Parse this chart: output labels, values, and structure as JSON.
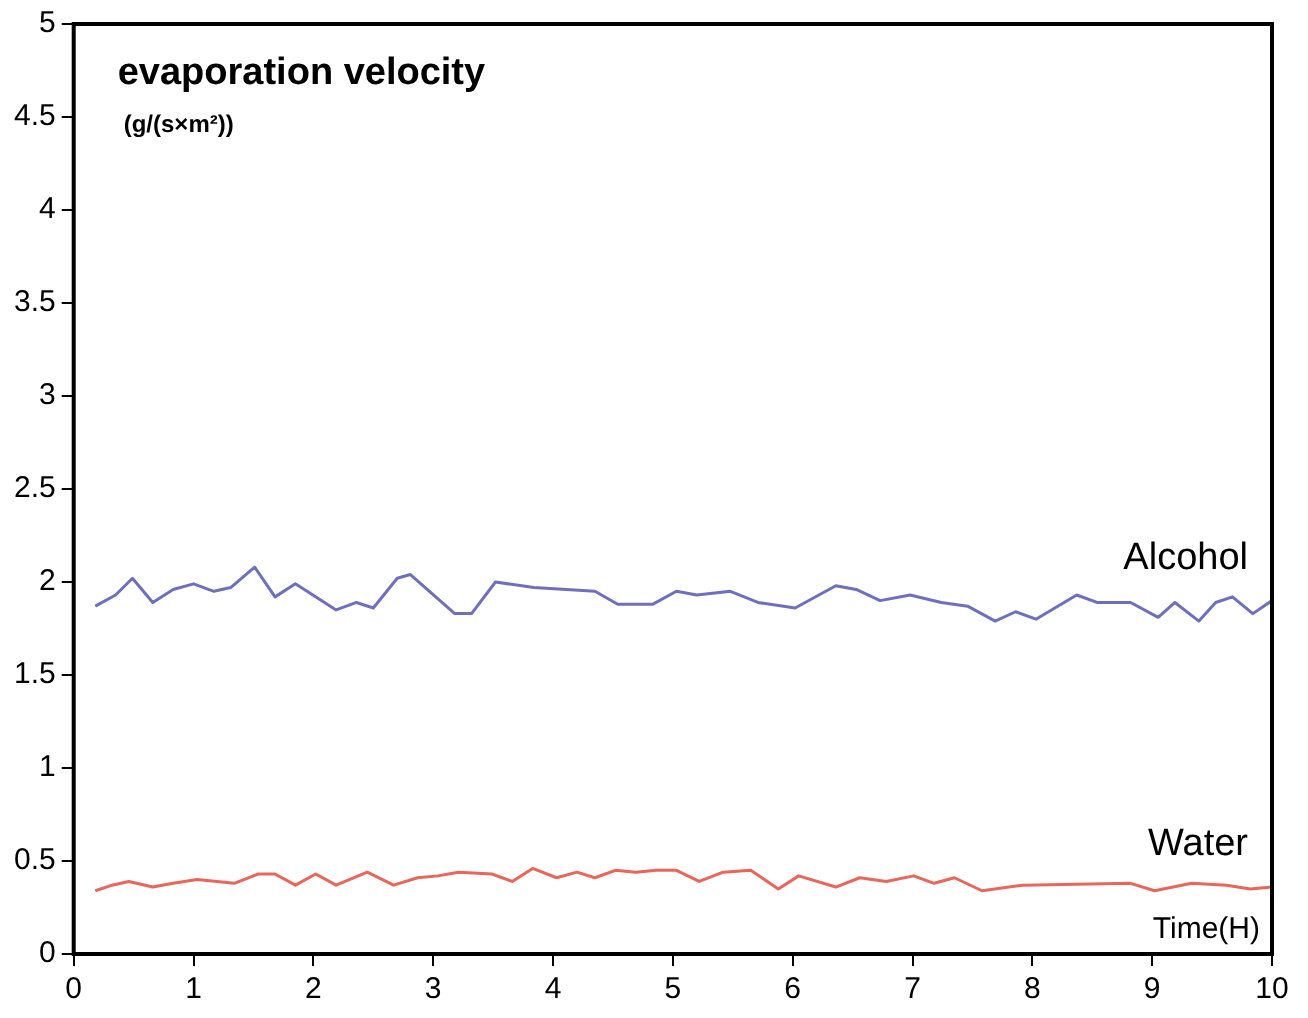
{
  "chart_data": {
    "type": "line",
    "ylabel": "evaporation velocity",
    "xlabel": "Time(H)",
    "annotations": [
      "(g/(s×m²))"
    ],
    "xlim": [
      0,
      10
    ],
    "xticks": [
      0,
      1,
      2,
      3,
      4,
      5,
      6,
      7,
      8,
      9,
      10
    ],
    "ylim": [
      0,
      5
    ],
    "yticks": [
      0,
      0.5,
      1,
      1.5,
      2,
      2.5,
      3,
      3.5,
      4,
      4.5,
      5
    ],
    "grid": false,
    "legend": false,
    "marker": "none",
    "line_style": "solid",
    "series": [
      {
        "name": "Alcohol",
        "color": "#6f6fc0",
        "x": [
          0.18,
          0.35,
          0.49,
          0.66,
          0.83,
          1.0,
          1.17,
          1.31,
          1.51,
          1.68,
          1.85,
          2.19,
          2.36,
          2.5,
          2.7,
          2.81,
          3.18,
          3.32,
          3.52,
          3.84,
          4.35,
          4.54,
          4.83,
          5.03,
          5.2,
          5.48,
          5.71,
          6.02,
          6.36,
          6.53,
          6.73,
          6.98,
          7.24,
          7.46,
          7.69,
          7.86,
          8.03,
          8.37,
          8.54,
          8.82,
          9.05,
          9.19,
          9.39,
          9.53,
          9.67,
          9.84,
          10.0
        ],
        "values": [
          1.87,
          1.93,
          2.02,
          1.89,
          1.96,
          1.99,
          1.95,
          1.97,
          2.08,
          1.92,
          1.99,
          1.85,
          1.89,
          1.86,
          2.02,
          2.04,
          1.83,
          1.83,
          2.0,
          1.97,
          1.95,
          1.88,
          1.88,
          1.95,
          1.93,
          1.95,
          1.89,
          1.86,
          1.98,
          1.96,
          1.9,
          1.93,
          1.89,
          1.87,
          1.79,
          1.84,
          1.8,
          1.93,
          1.89,
          1.89,
          1.81,
          1.89,
          1.79,
          1.89,
          1.92,
          1.83,
          1.9
        ]
      },
      {
        "name": "Water",
        "color": "#e8665a",
        "x": [
          0.18,
          0.32,
          0.46,
          0.66,
          0.83,
          1.03,
          1.34,
          1.54,
          1.68,
          1.85,
          2.02,
          2.19,
          2.45,
          2.67,
          2.87,
          3.04,
          3.21,
          3.49,
          3.66,
          3.83,
          4.03,
          4.2,
          4.35,
          4.52,
          4.69,
          4.86,
          5.03,
          5.22,
          5.42,
          5.65,
          5.88,
          6.05,
          6.36,
          6.56,
          6.78,
          7.01,
          7.18,
          7.35,
          7.58,
          7.92,
          8.82,
          9.02,
          9.33,
          9.62,
          9.82,
          10.0
        ],
        "values": [
          0.34,
          0.37,
          0.39,
          0.36,
          0.38,
          0.4,
          0.38,
          0.43,
          0.43,
          0.37,
          0.43,
          0.37,
          0.44,
          0.37,
          0.41,
          0.42,
          0.44,
          0.43,
          0.39,
          0.46,
          0.41,
          0.44,
          0.41,
          0.45,
          0.44,
          0.45,
          0.45,
          0.39,
          0.44,
          0.45,
          0.35,
          0.42,
          0.36,
          0.41,
          0.39,
          0.42,
          0.38,
          0.41,
          0.34,
          0.37,
          0.38,
          0.34,
          0.38,
          0.37,
          0.35,
          0.36
        ]
      }
    ]
  }
}
